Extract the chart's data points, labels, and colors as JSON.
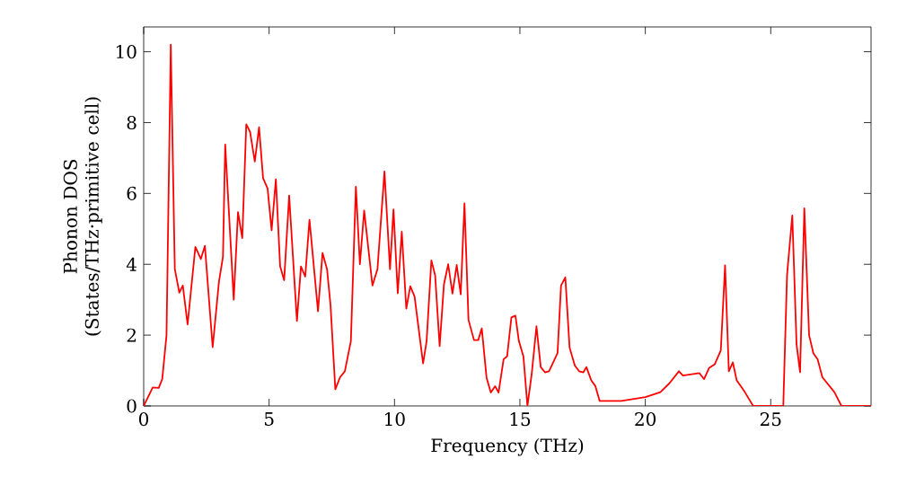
{
  "chart_data": {
    "type": "line",
    "xlabel": "Frequency (THz)",
    "ylabel": "Phonon DOS (States/THz·primitive cell)",
    "color": "#ff0000",
    "marker": "none",
    "line_style": "solid",
    "grid": false,
    "x": [
      0,
      0.36,
      0.6,
      0.74,
      0.91,
      1.08,
      1.24,
      1.42,
      1.56,
      1.75,
      2.06,
      2.28,
      2.44,
      2.75,
      3.0,
      3.16,
      3.25,
      3.59,
      3.76,
      3.93,
      4.09,
      4.24,
      4.43,
      4.6,
      4.76,
      4.94,
      5.1,
      5.27,
      5.44,
      5.6,
      5.8,
      6.11,
      6.27,
      6.44,
      6.61,
      6.95,
      7.13,
      7.31,
      7.45,
      7.64,
      7.83,
      8.02,
      8.26,
      8.46,
      8.62,
      8.79,
      9.12,
      9.32,
      9.6,
      9.82,
      9.96,
      10.13,
      10.29,
      10.47,
      10.63,
      10.8,
      11.14,
      11.28,
      11.47,
      11.62,
      11.8,
      11.97,
      12.14,
      12.31,
      12.48,
      12.64,
      12.79,
      12.95,
      13.17,
      13.34,
      13.48,
      13.67,
      13.84,
      14.01,
      14.15,
      14.35,
      14.49,
      14.66,
      14.82,
      14.96,
      15.14,
      15.3,
      15.47,
      15.66,
      15.83,
      16.0,
      16.16,
      16.5,
      16.64,
      16.81,
      16.98,
      17.19,
      17.36,
      17.53,
      17.65,
      17.84,
      18.01,
      18.18,
      19.04,
      20.0,
      20.6,
      20.96,
      21.34,
      21.5,
      22.15,
      22.34,
      22.54,
      22.77,
      23.01,
      23.18,
      23.33,
      23.49,
      23.64,
      23.97,
      24.3,
      25.5,
      25.65,
      25.86,
      26.03,
      26.17,
      26.34,
      26.53,
      26.7,
      26.87,
      27.06,
      27.54,
      27.82,
      29
    ],
    "values": [
      0,
      0.52,
      0.51,
      0.76,
      2.0,
      10.2,
      3.87,
      3.2,
      3.4,
      2.3,
      4.49,
      4.15,
      4.52,
      1.66,
      3.5,
      4.21,
      7.38,
      3.0,
      5.47,
      4.74,
      7.95,
      7.74,
      6.9,
      7.87,
      6.43,
      6.14,
      4.96,
      6.4,
      3.94,
      3.55,
      5.94,
      2.4,
      3.94,
      3.65,
      5.26,
      2.67,
      4.32,
      3.86,
      2.84,
      0.47,
      0.81,
      0.98,
      1.83,
      6.19,
      4.0,
      5.52,
      3.4,
      3.86,
      6.62,
      3.86,
      5.55,
      3.18,
      4.92,
      2.75,
      3.38,
      3.09,
      1.2,
      1.83,
      4.11,
      3.69,
      1.69,
      3.43,
      4.0,
      3.17,
      3.98,
      3.15,
      5.72,
      2.43,
      1.86,
      1.86,
      2.19,
      0.8,
      0.38,
      0.56,
      0.38,
      1.32,
      1.4,
      2.5,
      2.55,
      1.83,
      1.4,
      0,
      0.9,
      2.25,
      1.1,
      0.95,
      0.98,
      1.49,
      3.4,
      3.63,
      1.65,
      1.14,
      0.98,
      0.95,
      1.1,
      0.73,
      0.56,
      0.14,
      0.14,
      0.25,
      0.39,
      0.64,
      0.98,
      0.86,
      0.93,
      0.76,
      1.07,
      1.18,
      1.57,
      3.97,
      0.98,
      1.23,
      0.73,
      0.39,
      0,
      0,
      3.69,
      5.38,
      1.74,
      0.95,
      5.58,
      2.0,
      1.49,
      1.32,
      0.81,
      0.39,
      0,
      0
    ],
    "xlim": [
      0,
      29
    ],
    "ylim": [
      0,
      10.7
    ],
    "xticks": [
      0,
      5,
      10,
      15,
      20,
      25
    ],
    "yticks": [
      0,
      2,
      4,
      6,
      8,
      10
    ]
  }
}
